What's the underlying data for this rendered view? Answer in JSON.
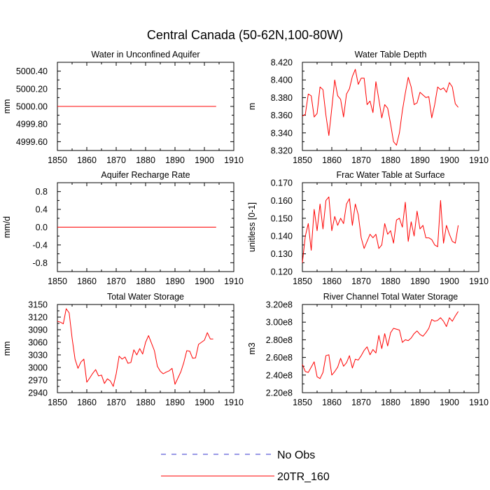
{
  "figure": {
    "title": "Central Canada (50-62N,100-80W)",
    "legend": [
      {
        "label": "No Obs",
        "color": "#3333cc",
        "dash": true
      },
      {
        "label": "20TR_160",
        "color": "#ff0000",
        "dash": false
      }
    ]
  },
  "chart_data": [
    {
      "id": "p1",
      "type": "line",
      "title": "Water in Unconfined Aquifer",
      "ylabel": "mm",
      "xlim": [
        1850,
        1910
      ],
      "ylim": [
        4999.5,
        5000.5
      ],
      "xticks": [
        1850,
        1860,
        1870,
        1880,
        1890,
        1900,
        1910
      ],
      "yticks": [
        4999.6,
        4999.8,
        5000.0,
        5000.2,
        5000.4
      ],
      "ytick_labels": [
        "4999.60",
        "4999.80",
        "5000.00",
        "5000.20",
        "5000.40"
      ],
      "series": [
        {
          "name": "20TR_160",
          "x_start": 1850,
          "values": [
            5000,
            5000,
            5000,
            5000,
            5000,
            5000,
            5000,
            5000,
            5000,
            5000,
            5000,
            5000,
            5000,
            5000,
            5000,
            5000,
            5000,
            5000,
            5000,
            5000,
            5000,
            5000,
            5000,
            5000,
            5000,
            5000,
            5000,
            5000,
            5000,
            5000,
            5000,
            5000,
            5000,
            5000,
            5000,
            5000,
            5000,
            5000,
            5000,
            5000,
            5000,
            5000,
            5000,
            5000,
            5000,
            5000,
            5000,
            5000,
            5000,
            5000,
            5000,
            5000,
            5000,
            5000,
            5000
          ]
        }
      ]
    },
    {
      "id": "p2",
      "type": "line",
      "title": "Water Table Depth",
      "ylabel": "m",
      "xlim": [
        1850,
        1910
      ],
      "ylim": [
        8.32,
        8.42
      ],
      "xticks": [
        1850,
        1860,
        1870,
        1880,
        1890,
        1900,
        1910
      ],
      "yticks": [
        8.32,
        8.34,
        8.36,
        8.38,
        8.4,
        8.42
      ],
      "ytick_labels": [
        "8.320",
        "8.340",
        "8.360",
        "8.380",
        "8.400",
        "8.420"
      ],
      "series": [
        {
          "name": "20TR_160",
          "x_start": 1850,
          "values": [
            8.359,
            8.361,
            8.384,
            8.382,
            8.358,
            8.362,
            8.392,
            8.389,
            8.36,
            8.337,
            8.368,
            8.4,
            8.382,
            8.378,
            8.358,
            8.384,
            8.39,
            8.404,
            8.412,
            8.395,
            8.402,
            8.402,
            8.372,
            8.376,
            8.363,
            8.398,
            8.378,
            8.357,
            8.372,
            8.368,
            8.35,
            8.33,
            8.326,
            8.34,
            8.365,
            8.385,
            8.403,
            8.392,
            8.372,
            8.374,
            8.386,
            8.383,
            8.38,
            8.381,
            8.357,
            8.372,
            8.392,
            8.389,
            8.391,
            8.386,
            8.397,
            8.392,
            8.373,
            8.369
          ]
        }
      ]
    },
    {
      "id": "p3",
      "type": "line",
      "title": "Aquifer Recharge Rate",
      "ylabel": "mm/d",
      "xlim": [
        1850,
        1910
      ],
      "ylim": [
        -1.0,
        1.0
      ],
      "xticks": [
        1850,
        1860,
        1870,
        1880,
        1890,
        1900,
        1910
      ],
      "yticks": [
        -0.8,
        -0.4,
        0.0,
        0.4,
        0.8
      ],
      "ytick_labels": [
        "-0.8",
        "-0.4",
        "0.0",
        "0.4",
        "0.8"
      ],
      "series": [
        {
          "name": "20TR_160",
          "x_start": 1850,
          "values": [
            0,
            0,
            0,
            0,
            0,
            0,
            0,
            0,
            0,
            0,
            0,
            0,
            0,
            0,
            0,
            0,
            0,
            0,
            0,
            0,
            0,
            0,
            0,
            0,
            0,
            0,
            0,
            0,
            0,
            0,
            0,
            0,
            0,
            0,
            0,
            0,
            0,
            0,
            0,
            0,
            0,
            0,
            0,
            0,
            0,
            0,
            0,
            0,
            0,
            0,
            0,
            0,
            0,
            0,
            0
          ]
        }
      ]
    },
    {
      "id": "p4",
      "type": "line",
      "title": "Frac Water Table at Surface",
      "ylabel": "unitless [0-1]",
      "xlim": [
        1850,
        1910
      ],
      "ylim": [
        0.12,
        0.17
      ],
      "xticks": [
        1850,
        1860,
        1870,
        1880,
        1890,
        1900,
        1910
      ],
      "yticks": [
        0.12,
        0.13,
        0.14,
        0.15,
        0.16,
        0.17
      ],
      "ytick_labels": [
        "0.120",
        "0.130",
        "0.140",
        "0.150",
        "0.160",
        "0.170"
      ],
      "series": [
        {
          "name": "20TR_160",
          "x_start": 1850,
          "values": [
            0.125,
            0.14,
            0.147,
            0.132,
            0.155,
            0.143,
            0.158,
            0.144,
            0.16,
            0.162,
            0.143,
            0.151,
            0.146,
            0.15,
            0.147,
            0.158,
            0.161,
            0.146,
            0.158,
            0.152,
            0.139,
            0.133,
            0.137,
            0.141,
            0.139,
            0.141,
            0.133,
            0.135,
            0.147,
            0.141,
            0.143,
            0.136,
            0.149,
            0.15,
            0.145,
            0.159,
            0.137,
            0.148,
            0.14,
            0.154,
            0.144,
            0.146,
            0.139,
            0.139,
            0.138,
            0.135,
            0.134,
            0.16,
            0.136,
            0.146,
            0.141,
            0.137,
            0.136,
            0.146
          ]
        }
      ]
    },
    {
      "id": "p5",
      "type": "line",
      "title": "Total Water Storage",
      "ylabel": "mm",
      "xlim": [
        1850,
        1910
      ],
      "ylim": [
        2940,
        3150
      ],
      "xticks": [
        1850,
        1860,
        1870,
        1880,
        1890,
        1900,
        1910
      ],
      "yticks": [
        2940,
        2970,
        3000,
        3030,
        3060,
        3090,
        3120,
        3150
      ],
      "ytick_labels": [
        "2940",
        "2970",
        "3000",
        "3030",
        "3060",
        "3090",
        "3120",
        "3150"
      ],
      "series": [
        {
          "name": "20TR_160",
          "x_start": 1850,
          "values": [
            3110,
            3108,
            3104,
            3140,
            3130,
            3070,
            3020,
            2998,
            3013,
            3020,
            2965,
            2975,
            2986,
            2995,
            2980,
            2982,
            2962,
            2973,
            2968,
            2955,
            2985,
            3027,
            3020,
            3025,
            3010,
            3012,
            3042,
            3030,
            3045,
            3032,
            3060,
            3076,
            3058,
            3040,
            3003,
            2991,
            2985,
            2989,
            2992,
            2998,
            2960,
            2975,
            2990,
            3012,
            3040,
            3039,
            3022,
            3023,
            3055,
            3060,
            3065,
            3083,
            3068,
            3068
          ]
        }
      ]
    },
    {
      "id": "p6",
      "type": "line",
      "title": "River Channel Total Water Storage",
      "ylabel": "m3",
      "xlim": [
        1850,
        1910
      ],
      "ylim": [
        220000000,
        320000000
      ],
      "xticks": [
        1850,
        1860,
        1870,
        1880,
        1890,
        1900,
        1910
      ],
      "yticks": [
        220000000,
        240000000,
        260000000,
        280000000,
        300000000,
        320000000
      ],
      "ytick_labels": [
        "2.20e8",
        "2.40e8",
        "2.60e8",
        "2.80e8",
        "3.00e8",
        "3.20e8"
      ],
      "series": [
        {
          "name": "20TR_160",
          "x_start": 1850,
          "values": [
            252000000,
            244000000,
            243000000,
            249000000,
            255000000,
            238000000,
            236000000,
            243000000,
            262000000,
            263000000,
            240000000,
            244000000,
            249000000,
            259000000,
            250000000,
            254000000,
            262000000,
            248000000,
            258000000,
            257000000,
            262000000,
            268000000,
            272000000,
            263000000,
            269000000,
            265000000,
            285000000,
            270000000,
            287000000,
            273000000,
            288000000,
            293000000,
            292000000,
            291000000,
            277000000,
            280000000,
            279000000,
            282000000,
            287000000,
            290000000,
            286000000,
            284000000,
            288000000,
            293000000,
            303000000,
            301000000,
            302000000,
            305000000,
            301000000,
            295000000,
            305000000,
            301000000,
            307000000,
            312000000
          ]
        }
      ]
    }
  ]
}
